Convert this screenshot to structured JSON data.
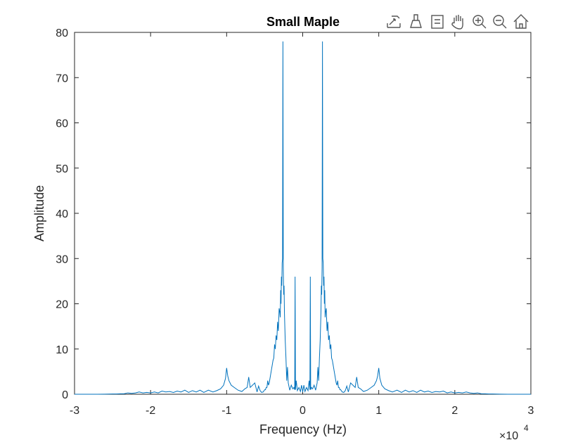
{
  "toolbar": {
    "buttons": [
      {
        "name": "export-icon"
      },
      {
        "name": "brush-icon"
      },
      {
        "name": "datatip-icon"
      },
      {
        "name": "pan-hand-icon"
      },
      {
        "name": "zoom-in-icon"
      },
      {
        "name": "zoom-out-icon"
      },
      {
        "name": "home-restore-icon"
      }
    ]
  },
  "chart_data": {
    "type": "line",
    "title": "Small Maple",
    "xlabel": "Frequency (Hz)",
    "ylabel": "Amplitude",
    "x_exponent_label": "×10",
    "x_exponent_power": "4",
    "xlim": [
      -30000,
      30000
    ],
    "ylim": [
      0,
      80
    ],
    "xticks": [
      -30000,
      -20000,
      -10000,
      0,
      10000,
      20000,
      30000
    ],
    "xtick_labels": [
      "-3",
      "-2",
      "-1",
      "0",
      "1",
      "2",
      "3"
    ],
    "yticks": [
      0,
      10,
      20,
      30,
      40,
      50,
      60,
      70,
      80
    ],
    "ytick_labels": [
      "0",
      "10",
      "20",
      "30",
      "40",
      "50",
      "60",
      "70",
      "80"
    ],
    "grid": false,
    "series_color": "#0072BD",
    "series": [
      {
        "x": [
          0,
          150,
          300,
          500,
          700,
          850,
          950,
          1000,
          1050,
          1150,
          1300,
          1500,
          1700,
          1900,
          2000,
          2100,
          2200,
          2300,
          2400,
          2450,
          2500,
          2550,
          2600,
          2650,
          2700,
          2750,
          2800,
          2850,
          2900,
          2950,
          3000,
          3100,
          3200,
          3300,
          3400,
          3500,
          3600,
          3700,
          3800,
          3900,
          4000,
          4100,
          4200,
          4300,
          4400,
          4500,
          4600,
          4700,
          4800,
          4900,
          5000,
          5200,
          5400,
          5600,
          5800,
          6000,
          6300,
          6600,
          6900,
          7100,
          7300,
          7600,
          8000,
          8500,
          9000,
          9400,
          9700,
          9850,
          10000,
          10150,
          10400,
          10800,
          11300,
          11800,
          12400,
          13000,
          13500,
          14000,
          14500,
          15000,
          15500,
          16000,
          16500,
          17000,
          17500,
          18000,
          18500,
          19000,
          19500,
          20000,
          20500,
          21000,
          21500,
          22000,
          22500,
          23000,
          23500,
          24000,
          24500,
          25000,
          26000,
          27000,
          28000,
          29000,
          30000
        ],
        "y": [
          0.5,
          2.0,
          0.6,
          1.5,
          0.8,
          3.0,
          1.0,
          26.0,
          1.0,
          1.5,
          1.2,
          2.0,
          0.9,
          2.5,
          6.0,
          3.0,
          8.0,
          12.0,
          18.0,
          24.0,
          22.0,
          28.0,
          78.0,
          30.0,
          29.0,
          24.0,
          26.0,
          20.0,
          23.0,
          17.0,
          18.0,
          19.0,
          14.0,
          16.0,
          12.0,
          13.0,
          10.0,
          11.0,
          8.0,
          7.5,
          6.5,
          5.5,
          4.5,
          3.5,
          2.5,
          2.0,
          3.0,
          1.5,
          1.5,
          1.0,
          1.0,
          0.5,
          0.4,
          0.8,
          1.8,
          0.5,
          2.5,
          2.0,
          1.5,
          3.8,
          1.5,
          1.2,
          0.6,
          0.9,
          1.5,
          2.0,
          3.0,
          4.0,
          5.8,
          3.5,
          2.0,
          1.2,
          0.8,
          0.5,
          0.9,
          0.4,
          0.9,
          0.5,
          0.8,
          0.4,
          0.9,
          0.5,
          0.7,
          0.4,
          0.6,
          0.5,
          0.7,
          0.3,
          0.5,
          0.3,
          0.4,
          0.3,
          0.5,
          0.3,
          0.2,
          0.3,
          0.1,
          0.1,
          0.05,
          0.05,
          0.02,
          0.0,
          0.0,
          0.0,
          0.0
        ]
      }
    ],
    "symmetric_about_zero": true
  }
}
